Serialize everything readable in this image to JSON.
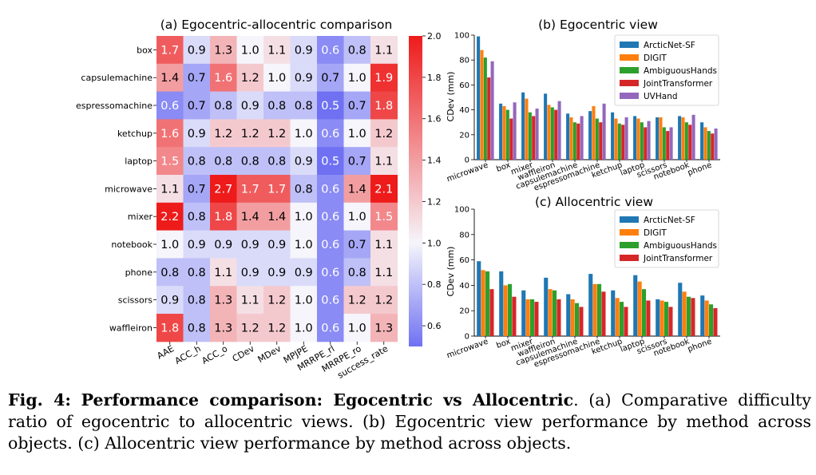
{
  "colors": {
    "low": "#6f71f2",
    "mid": "#f5f5fb",
    "high": "#ee1b1b"
  },
  "chart_data": [
    {
      "type": "heatmap",
      "title": "(a) Egocentric-allocentric comparison",
      "rows": [
        "box",
        "capsulemachine",
        "espressomachine",
        "ketchup",
        "laptop",
        "microwave",
        "mixer",
        "notebook",
        "phone",
        "scissors",
        "waffleiron"
      ],
      "columns": [
        "AAE",
        "ACC_h",
        "ACC_o",
        "CDev",
        "MDev",
        "MPJPE",
        "MRRPE_rl",
        "MRRPE_ro",
        "success_rate"
      ],
      "values": [
        [
          1.7,
          0.9,
          1.3,
          1.0,
          1.1,
          0.9,
          0.6,
          0.8,
          1.1
        ],
        [
          1.4,
          0.7,
          1.6,
          1.2,
          1.0,
          0.9,
          0.7,
          1.0,
          1.9
        ],
        [
          0.6,
          0.7,
          0.8,
          0.9,
          0.8,
          0.8,
          0.5,
          0.7,
          1.8
        ],
        [
          1.6,
          0.9,
          1.2,
          1.2,
          1.2,
          1.0,
          0.6,
          1.0,
          1.2
        ],
        [
          1.5,
          0.8,
          0.8,
          0.8,
          0.8,
          0.9,
          0.5,
          0.7,
          1.1
        ],
        [
          1.1,
          0.7,
          2.7,
          1.7,
          1.7,
          0.8,
          0.6,
          1.4,
          2.1
        ],
        [
          2.2,
          0.8,
          1.8,
          1.4,
          1.4,
          1.0,
          0.6,
          1.0,
          1.5
        ],
        [
          1.0,
          0.9,
          0.9,
          0.9,
          0.9,
          1.0,
          0.6,
          0.7,
          1.1
        ],
        [
          0.8,
          0.8,
          1.1,
          0.9,
          0.9,
          0.9,
          0.6,
          0.8,
          1.1
        ],
        [
          0.9,
          0.8,
          1.3,
          1.1,
          1.2,
          1.0,
          0.6,
          1.2,
          1.2
        ],
        [
          1.8,
          0.8,
          1.3,
          1.2,
          1.2,
          1.0,
          0.6,
          1.0,
          1.3
        ]
      ],
      "colorbar": {
        "range": [
          0.5,
          2.0
        ],
        "ticks": [
          "0.6",
          "0.8",
          "1.0",
          "1.2",
          "1.4",
          "1.6",
          "1.8",
          "2.0"
        ]
      }
    },
    {
      "type": "bar",
      "title": "(b) Egocentric view",
      "ylabel": "CDev (mm)",
      "ylim": [
        0,
        100
      ],
      "yticks": [
        "0",
        "20",
        "40",
        "60",
        "80",
        "100"
      ],
      "legend_position": "top-right",
      "categories": [
        "microwave",
        "box",
        "mixer",
        "waffleiron",
        "capsulemachine",
        "espressomachine",
        "ketchup",
        "laptop",
        "scissors",
        "notebook",
        "phone"
      ],
      "series": [
        {
          "name": "ArcticNet-SF",
          "color": "#1f77b4",
          "values": [
            99,
            45,
            54,
            53,
            37,
            39,
            38,
            35,
            34,
            35,
            30
          ]
        },
        {
          "name": "DIGIT",
          "color": "#ff7f0e",
          "values": [
            88,
            43,
            49,
            44,
            34,
            43,
            33,
            33,
            34,
            34,
            26
          ]
        },
        {
          "name": "AmbiguousHands",
          "color": "#2ca02c",
          "values": [
            82,
            40,
            38,
            42,
            30,
            33,
            29,
            30,
            26,
            30,
            23
          ]
        },
        {
          "name": "JointTransformer",
          "color": "#d62728",
          "values": [
            66,
            33,
            35,
            40,
            29,
            30,
            28,
            26,
            23,
            28,
            21
          ]
        },
        {
          "name": "UVHand",
          "color": "#9467bd",
          "values": [
            79,
            46,
            41,
            47,
            35,
            45,
            34,
            31,
            26,
            36,
            25
          ]
        }
      ]
    },
    {
      "type": "bar",
      "title": "(c) Allocentric view",
      "ylabel": "CDev (mm)",
      "ylim": [
        0,
        100
      ],
      "yticks": [
        "0",
        "20",
        "40",
        "60",
        "80",
        "100"
      ],
      "legend_position": "top-right",
      "categories": [
        "microwave",
        "box",
        "mixer",
        "waffleiron",
        "capsulemachine",
        "espressomachine",
        "ketchup",
        "laptop",
        "scissors",
        "notebook",
        "phone"
      ],
      "series": [
        {
          "name": "ArcticNet-SF",
          "color": "#1f77b4",
          "values": [
            59,
            51,
            36,
            46,
            33,
            49,
            36,
            48,
            29,
            42,
            32
          ]
        },
        {
          "name": "DIGIT",
          "color": "#ff7f0e",
          "values": [
            52,
            40,
            29,
            37,
            29,
            41,
            30,
            43,
            28,
            35,
            28
          ]
        },
        {
          "name": "AmbiguousHands",
          "color": "#2ca02c",
          "values": [
            51,
            41,
            29,
            36,
            26,
            41,
            27,
            37,
            27,
            31,
            25
          ]
        },
        {
          "name": "JointTransformer",
          "color": "#d62728",
          "values": [
            37,
            31,
            27,
            29,
            23,
            35,
            23,
            28,
            23,
            30,
            22
          ]
        }
      ]
    }
  ],
  "caption": {
    "label": "Fig. 4:",
    "title": "Performance comparison: Egocentric vs Allocentric",
    "text": ". (a) Comparative difficulty ratio of egocentric to allocentric views. (b) Egocentric view performance by method across objects. (c) Allocentric view performance by method across objects."
  }
}
